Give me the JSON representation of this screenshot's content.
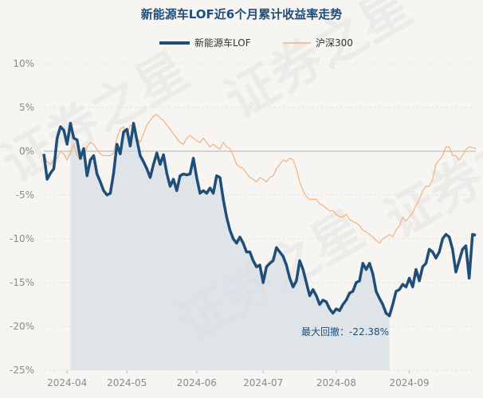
{
  "chart_data": {
    "type": "line",
    "title": "新能源车LOF近6个月累计收益率走势",
    "xlabel": "",
    "ylabel": "",
    "ylim": [
      -25,
      10
    ],
    "yticks": [
      10,
      5,
      0,
      -5,
      -10,
      -15,
      -20,
      -25
    ],
    "ytick_labels": [
      "10%",
      "5%",
      "0%",
      "-5%",
      "-10%",
      "-15%",
      "-20%",
      "-25%"
    ],
    "xlim": [
      0,
      130
    ],
    "xticks": [
      {
        "label": "2024-04",
        "x": 7
      },
      {
        "label": "2024-05",
        "x": 25
      },
      {
        "label": "2024-06",
        "x": 46
      },
      {
        "label": "2024-07",
        "x": 66
      },
      {
        "label": "2024-08",
        "x": 88
      },
      {
        "label": "2024-09",
        "x": 110
      }
    ],
    "legend": {
      "placement": "top-center"
    },
    "colors": {
      "fund": "#1f4e79",
      "index": "#f2b27e",
      "drawdown": "#d6dde4",
      "zero": "#c8c8c8",
      "grid": "#e3e3e3"
    },
    "series": [
      {
        "name": "新能源车LOF",
        "values": [
          -0.3,
          -3.2,
          -2.5,
          -2.0,
          1.5,
          2.8,
          2.4,
          0.8,
          3.2,
          1.5,
          1.3,
          -0.8,
          0.3,
          -2.8,
          -1.0,
          -0.5,
          -2.6,
          -3.5,
          -4.5,
          -5.0,
          -4.8,
          -2.5,
          0.8,
          -0.3,
          2.2,
          2.5,
          0.6,
          3.2,
          1.3,
          -0.5,
          -1.2,
          -2.0,
          -3.0,
          -1.5,
          -0.2,
          -1.5,
          -0.4,
          -2.5,
          -4.0,
          -3.2,
          -4.5,
          -2.8,
          -2.6,
          -2.7,
          -2.6,
          -0.8,
          -3.0,
          -4.8,
          -4.5,
          -4.8,
          -4.2,
          -4.8,
          -2.8,
          -3.0,
          -5.5,
          -7.5,
          -9.0,
          -10.0,
          -10.5,
          -9.8,
          -10.5,
          -11.5,
          -11.5,
          -12.5,
          -13.2,
          -13.0,
          -15.0,
          -13.2,
          -12.8,
          -12.5,
          -11.0,
          -11.5,
          -12.0,
          -13.0,
          -14.5,
          -15.5,
          -14.8,
          -12.5,
          -13.5,
          -15.0,
          -16.5,
          -15.8,
          -16.5,
          -17.5,
          -17.0,
          -17.2,
          -18.0,
          -18.5,
          -18.0,
          -18.2,
          -17.5,
          -17.0,
          -16.2,
          -16.0,
          -15.0,
          -14.8,
          -12.8,
          -13.5,
          -12.8,
          -14.0,
          -16.0,
          -16.8,
          -17.5,
          -18.5,
          -18.8,
          -17.5,
          -16.0,
          -15.8,
          -15.2,
          -15.5,
          -14.5,
          -15.5,
          -13.5,
          -14.8,
          -13.2,
          -12.8,
          -11.2,
          -11.5,
          -12.2,
          -11.5,
          -10.0,
          -9.5,
          -9.8,
          -11.2,
          -13.8,
          -12.5,
          -11.2,
          -10.8,
          -14.5,
          -9.5,
          -9.6
        ]
      },
      {
        "name": "沪深300",
        "values": [
          -0.5,
          -1.2,
          -1.5,
          -1.0,
          -0.8,
          0.0,
          -0.3,
          -1.0,
          -0.2,
          0.8,
          -0.5,
          -1.0,
          -0.8,
          0.5,
          1.0,
          0.8,
          0.2,
          -0.3,
          -0.5,
          -0.5,
          -0.5,
          -0.2,
          1.5,
          2.5,
          2.8,
          1.8,
          3.0,
          2.8,
          1.5,
          1.0,
          2.0,
          3.0,
          3.5,
          4.0,
          4.2,
          3.8,
          3.5,
          3.0,
          2.5,
          2.0,
          1.5,
          1.0,
          0.8,
          1.5,
          1.8,
          1.5,
          1.2,
          1.0,
          1.5,
          1.0,
          0.5,
          0.8,
          0.5,
          0.2,
          1.0,
          0.5,
          0.3,
          -0.5,
          -1.5,
          -1.8,
          -2.0,
          -2.5,
          -3.0,
          -3.2,
          -3.5,
          -3.0,
          -3.2,
          -3.5,
          -3.0,
          -2.8,
          -2.0,
          -1.5,
          -1.0,
          -1.2,
          -0.8,
          -1.0,
          -2.0,
          -3.5,
          -4.5,
          -5.2,
          -5.5,
          -5.5,
          -5.5,
          -6.0,
          -6.2,
          -6.5,
          -6.8,
          -6.8,
          -7.2,
          -7.5,
          -7.5,
          -7.2,
          -7.8,
          -8.0,
          -8.2,
          -8.5,
          -9.0,
          -9.2,
          -9.5,
          -9.8,
          -10.2,
          -10.5,
          -10.0,
          -9.8,
          -9.5,
          -9.8,
          -9.0,
          -8.5,
          -7.5,
          -8.0,
          -7.5,
          -7.0,
          -6.2,
          -5.5,
          -4.5,
          -4.0,
          -4.0,
          -3.2,
          -1.5,
          -1.0,
          -0.5,
          0.5,
          0.5,
          -0.5,
          -0.5,
          -1.0,
          -0.5,
          0.2,
          0.5,
          0.4,
          0.3
        ]
      }
    ],
    "drawdown": {
      "start_index": 8,
      "end_index": 104,
      "label": "最大回撤：-22.38%"
    }
  },
  "watermark": "证券之星"
}
